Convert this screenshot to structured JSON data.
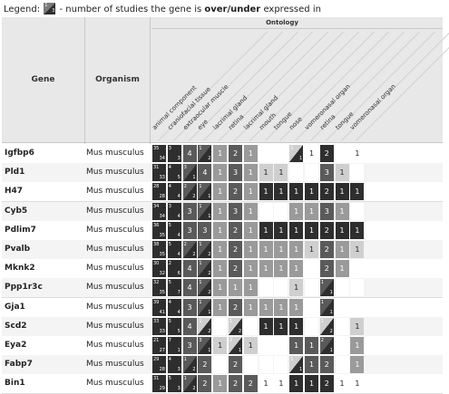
{
  "legend": {
    "prefix": "Legend:",
    "swatch_top": "1",
    "swatch_bottom": "3",
    "text_before": "- number of studies the gene is",
    "text_bold": "over/under",
    "text_after": "expressed in"
  },
  "table": {
    "gene_header": "Gene",
    "organism_header": "Organism",
    "ontology_header": "Ontology",
    "ontology_terms": [
      "animal component",
      "craniofacial tissue",
      "extraocular muscle",
      "eye",
      "lacrimal gland",
      "retina",
      "lacrimal gland",
      "mouth",
      "tongue",
      "nose",
      "vomeronasal organ",
      "retina",
      "tongue",
      "vomeronasal organ"
    ],
    "colors": {
      "dark": "#2e2e2e",
      "mid": "#5a5a5a",
      "light": "#9a9a9a",
      "pale": "#cfcfcf",
      "empty": "#ffffff",
      "row_alt": "#f4f4f4"
    },
    "rows": [
      {
        "gene": "Igfbp6",
        "organism": "Mus musculus",
        "cells": [
          {
            "t": "split",
            "a": "35",
            "b": "34",
            "c": "dark"
          },
          {
            "t": "split",
            "a": "3",
            "b": "3",
            "c": "dark"
          },
          {
            "v": "4",
            "c": "mid"
          },
          {
            "t": "split",
            "a": "1",
            "b": "2",
            "c": "mid"
          },
          {
            "v": "1",
            "c": "light"
          },
          {
            "v": "2",
            "c": "mid"
          },
          {
            "v": "1",
            "c": "light"
          },
          {
            "v": "",
            "c": "empty"
          },
          {
            "v": "",
            "c": "empty"
          },
          {
            "t": "split",
            "a": "1",
            "b": "1",
            "c": "pale"
          },
          {
            "v": "1",
            "c": "empty"
          },
          {
            "v": "2",
            "c": "dark"
          },
          {
            "v": "",
            "c": "empty"
          },
          {
            "v": "1",
            "c": "empty"
          }
        ]
      },
      {
        "gene": "Pld1",
        "organism": "Mus musculus",
        "cells": [
          {
            "t": "split",
            "a": "31",
            "b": "33",
            "c": "dark"
          },
          {
            "t": "split",
            "a": "4",
            "b": "5",
            "c": "dark"
          },
          {
            "t": "split",
            "a": "3",
            "b": "1",
            "c": "mid"
          },
          {
            "v": "4",
            "c": "mid"
          },
          {
            "v": "1",
            "c": "light"
          },
          {
            "v": "3",
            "c": "mid"
          },
          {
            "v": "1",
            "c": "light"
          },
          {
            "v": "1",
            "c": "pale"
          },
          {
            "v": "1",
            "c": "pale"
          },
          {
            "v": "",
            "c": "empty"
          },
          {
            "v": "",
            "c": "empty"
          },
          {
            "v": "3",
            "c": "mid"
          },
          {
            "v": "1",
            "c": "pale"
          },
          {
            "v": "",
            "c": "empty"
          }
        ]
      },
      {
        "gene": "H47",
        "organism": "Mus musculus",
        "cells": [
          {
            "t": "split",
            "a": "28",
            "b": "28",
            "c": "dark"
          },
          {
            "t": "split",
            "a": "4",
            "b": "4",
            "c": "dark"
          },
          {
            "t": "split",
            "a": "2",
            "b": "2",
            "c": "mid"
          },
          {
            "t": "split",
            "a": "1",
            "b": "1",
            "c": "mid"
          },
          {
            "v": "1",
            "c": "light"
          },
          {
            "v": "2",
            "c": "mid"
          },
          {
            "v": "1",
            "c": "light"
          },
          {
            "v": "1",
            "c": "dark"
          },
          {
            "v": "1",
            "c": "dark"
          },
          {
            "v": "1",
            "c": "dark"
          },
          {
            "v": "1",
            "c": "dark"
          },
          {
            "v": "2",
            "c": "dark"
          },
          {
            "v": "1",
            "c": "dark"
          },
          {
            "v": "1",
            "c": "dark"
          }
        ]
      },
      {
        "gene": "Cyb5",
        "organism": "Mus musculus",
        "cells": [
          {
            "t": "split",
            "a": "34",
            "b": "34",
            "c": "dark"
          },
          {
            "t": "split",
            "a": "3",
            "b": "4",
            "c": "dark"
          },
          {
            "v": "3",
            "c": "mid"
          },
          {
            "t": "split",
            "a": "1",
            "b": "1",
            "c": "mid"
          },
          {
            "v": "1",
            "c": "light"
          },
          {
            "v": "3",
            "c": "mid"
          },
          {
            "v": "1",
            "c": "light"
          },
          {
            "v": "",
            "c": "empty"
          },
          {
            "v": "",
            "c": "empty"
          },
          {
            "v": "1",
            "c": "light"
          },
          {
            "v": "1",
            "c": "light"
          },
          {
            "v": "3",
            "c": "mid"
          },
          {
            "v": "1",
            "c": "light"
          },
          {
            "v": "",
            "c": "empty"
          }
        ]
      },
      {
        "gene": "Pdlim7",
        "organism": "Mus musculus",
        "cells": [
          {
            "t": "split",
            "a": "36",
            "b": "35",
            "c": "dark"
          },
          {
            "t": "split",
            "a": "5",
            "b": "4",
            "c": "dark"
          },
          {
            "v": "3",
            "c": "mid"
          },
          {
            "v": "3",
            "c": "mid"
          },
          {
            "v": "1",
            "c": "light"
          },
          {
            "v": "2",
            "c": "mid"
          },
          {
            "v": "1",
            "c": "light"
          },
          {
            "v": "1",
            "c": "dark"
          },
          {
            "v": "1",
            "c": "dark"
          },
          {
            "v": "1",
            "c": "dark"
          },
          {
            "v": "1",
            "c": "dark"
          },
          {
            "v": "2",
            "c": "dark"
          },
          {
            "v": "1",
            "c": "dark"
          },
          {
            "v": "1",
            "c": "dark"
          }
        ]
      },
      {
        "gene": "Pvalb",
        "organism": "Mus musculus",
        "cells": [
          {
            "t": "split",
            "a": "38",
            "b": "35",
            "c": "dark"
          },
          {
            "t": "split",
            "a": "5",
            "b": "4",
            "c": "dark"
          },
          {
            "t": "split",
            "a": "2",
            "b": "2",
            "c": "mid"
          },
          {
            "t": "split",
            "a": "1",
            "b": "2",
            "c": "mid"
          },
          {
            "v": "1",
            "c": "light"
          },
          {
            "v": "2",
            "c": "mid"
          },
          {
            "v": "1",
            "c": "light"
          },
          {
            "v": "1",
            "c": "light"
          },
          {
            "v": "1",
            "c": "light"
          },
          {
            "v": "1",
            "c": "light"
          },
          {
            "v": "1",
            "c": "pale"
          },
          {
            "v": "2",
            "c": "mid"
          },
          {
            "v": "1",
            "c": "light"
          },
          {
            "v": "1",
            "c": "pale"
          }
        ]
      },
      {
        "gene": "Mknk2",
        "organism": "Mus musculus",
        "cells": [
          {
            "t": "split",
            "a": "30",
            "b": "32",
            "c": "dark"
          },
          {
            "t": "split",
            "a": "2",
            "b": "6",
            "c": "dark"
          },
          {
            "v": "4",
            "c": "mid"
          },
          {
            "t": "split",
            "a": "1",
            "b": "2",
            "c": "mid"
          },
          {
            "v": "1",
            "c": "light"
          },
          {
            "v": "2",
            "c": "mid"
          },
          {
            "v": "1",
            "c": "light"
          },
          {
            "v": "1",
            "c": "light"
          },
          {
            "v": "1",
            "c": "light"
          },
          {
            "v": "1",
            "c": "light"
          },
          {
            "v": "",
            "c": "empty"
          },
          {
            "v": "2",
            "c": "mid"
          },
          {
            "v": "1",
            "c": "light"
          },
          {
            "v": "",
            "c": "empty"
          }
        ]
      },
      {
        "gene": "Ppp1r3c",
        "organism": "Mus musculus",
        "cells": [
          {
            "t": "split",
            "a": "32",
            "b": "35",
            "c": "dark"
          },
          {
            "t": "split",
            "a": "5",
            "b": "7",
            "c": "dark"
          },
          {
            "v": "4",
            "c": "mid"
          },
          {
            "t": "split",
            "a": "1",
            "b": "2",
            "c": "mid"
          },
          {
            "v": "1",
            "c": "light"
          },
          {
            "v": "1",
            "c": "light"
          },
          {
            "v": "1",
            "c": "light"
          },
          {
            "v": "",
            "c": "empty"
          },
          {
            "v": "",
            "c": "empty"
          },
          {
            "v": "1",
            "c": "pale"
          },
          {
            "v": "",
            "c": "empty"
          },
          {
            "t": "split",
            "a": "1",
            "b": "1",
            "c": "mid"
          },
          {
            "v": "",
            "c": "empty"
          },
          {
            "v": "",
            "c": "empty"
          }
        ]
      },
      {
        "gene": "Gja1",
        "organism": "Mus musculus",
        "cells": [
          {
            "t": "split",
            "a": "39",
            "b": "41",
            "c": "dark"
          },
          {
            "t": "split",
            "a": "4",
            "b": "4",
            "c": "dark"
          },
          {
            "v": "3",
            "c": "mid"
          },
          {
            "t": "split",
            "a": "1",
            "b": "1",
            "c": "mid"
          },
          {
            "v": "1",
            "c": "light"
          },
          {
            "v": "2",
            "c": "mid"
          },
          {
            "v": "1",
            "c": "light"
          },
          {
            "v": "1",
            "c": "light"
          },
          {
            "v": "1",
            "c": "light"
          },
          {
            "v": "1",
            "c": "light"
          },
          {
            "v": "",
            "c": "empty"
          },
          {
            "t": "split",
            "a": "1",
            "b": "1",
            "c": "mid"
          },
          {
            "v": "",
            "c": "empty"
          },
          {
            "v": "",
            "c": "empty"
          }
        ]
      },
      {
        "gene": "Scd2",
        "organism": "Mus musculus",
        "cells": [
          {
            "t": "split",
            "a": "33",
            "b": "33",
            "c": "dark"
          },
          {
            "t": "split",
            "a": "5",
            "b": "5",
            "c": "dark"
          },
          {
            "v": "4",
            "c": "mid"
          },
          {
            "t": "split",
            "a": "1",
            "b": "2",
            "c": "pale"
          },
          {
            "v": "",
            "c": "empty"
          },
          {
            "t": "split",
            "a": "1",
            "b": "2",
            "c": "pale"
          },
          {
            "v": "",
            "c": "empty"
          },
          {
            "v": "1",
            "c": "dark"
          },
          {
            "v": "1",
            "c": "dark"
          },
          {
            "v": "1",
            "c": "dark"
          },
          {
            "v": "",
            "c": "empty"
          },
          {
            "t": "split",
            "a": "1",
            "b": "2",
            "c": "pale"
          },
          {
            "v": "",
            "c": "empty"
          },
          {
            "v": "1",
            "c": "pale"
          }
        ]
      },
      {
        "gene": "Eya2",
        "organism": "Mus musculus",
        "cells": [
          {
            "t": "split",
            "a": "21",
            "b": "27",
            "c": "dark"
          },
          {
            "t": "split",
            "a": "7",
            "b": "1",
            "c": "dark"
          },
          {
            "v": "3",
            "c": "mid"
          },
          {
            "t": "split",
            "a": "3",
            "b": "1",
            "c": "mid"
          },
          {
            "v": "1",
            "c": "pale"
          },
          {
            "t": "split",
            "a": "2",
            "b": "1",
            "c": "pale"
          },
          {
            "v": "1",
            "c": "pale"
          },
          {
            "v": "",
            "c": "empty"
          },
          {
            "v": "",
            "c": "empty"
          },
          {
            "v": "1",
            "c": "mid"
          },
          {
            "v": "1",
            "c": "mid"
          },
          {
            "t": "split",
            "a": "2",
            "b": "1",
            "c": "mid"
          },
          {
            "v": "",
            "c": "empty"
          },
          {
            "v": "1",
            "c": "light"
          }
        ]
      },
      {
        "gene": "Fabp7",
        "organism": "Mus musculus",
        "cells": [
          {
            "t": "split",
            "a": "29",
            "b": "28",
            "c": "dark"
          },
          {
            "t": "split",
            "a": "4",
            "b": "3",
            "c": "dark"
          },
          {
            "t": "split",
            "a": "1",
            "b": "2",
            "c": "mid"
          },
          {
            "v": "2",
            "c": "mid"
          },
          {
            "v": "",
            "c": "empty"
          },
          {
            "v": "2",
            "c": "mid"
          },
          {
            "v": "",
            "c": "empty"
          },
          {
            "v": "",
            "c": "empty"
          },
          {
            "v": "",
            "c": "empty"
          },
          {
            "t": "split",
            "a": "1",
            "b": "1",
            "c": "pale"
          },
          {
            "v": "1",
            "c": "mid"
          },
          {
            "v": "2",
            "c": "mid"
          },
          {
            "v": "",
            "c": "empty"
          },
          {
            "v": "1",
            "c": "light"
          }
        ]
      },
      {
        "gene": "Bin1",
        "organism": "Mus musculus",
        "cells": [
          {
            "t": "split",
            "a": "31",
            "b": "29",
            "c": "dark"
          },
          {
            "t": "split",
            "a": "5",
            "b": "3",
            "c": "dark"
          },
          {
            "t": "split",
            "a": "1",
            "b": "2",
            "c": "mid"
          },
          {
            "v": "2",
            "c": "mid"
          },
          {
            "v": "1",
            "c": "light"
          },
          {
            "v": "2",
            "c": "mid"
          },
          {
            "v": "2",
            "c": "mid"
          },
          {
            "v": "1",
            "c": "empty"
          },
          {
            "v": "1",
            "c": "empty"
          },
          {
            "v": "1",
            "c": "dark"
          },
          {
            "v": "1",
            "c": "dark"
          },
          {
            "v": "2",
            "c": "dark"
          },
          {
            "v": "1",
            "c": "empty"
          },
          {
            "v": "1",
            "c": "empty"
          }
        ]
      }
    ]
  }
}
